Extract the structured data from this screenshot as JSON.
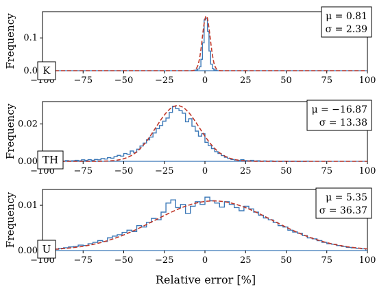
{
  "figure": {
    "xlabel": "Relative error [%]",
    "ylabel": "Frequency",
    "colors": {
      "histogram": "#3b78b7",
      "fit": "#c0392b",
      "axis": "#000000"
    }
  },
  "chart_data": [
    {
      "type": "bar",
      "panel": "K",
      "xlabel": "",
      "ylabel": "Frequency",
      "xlim": [
        -100,
        100
      ],
      "ylim": [
        0,
        0.18
      ],
      "xticks": [
        -100,
        -75,
        -50,
        -25,
        0,
        25,
        50,
        75,
        100
      ],
      "yticks": [
        0.0,
        0.1
      ],
      "ytick_labels": [
        "0.0",
        "0.1"
      ],
      "xtick_labels": [
        "−100",
        "−75",
        "−50",
        "−25",
        "0",
        "25",
        "50",
        "75",
        "100"
      ],
      "bin_width": 1,
      "histogram": [
        {
          "x": -6,
          "y": 0.001
        },
        {
          "x": -5,
          "y": 0.002
        },
        {
          "x": -4,
          "y": 0.005
        },
        {
          "x": -3,
          "y": 0.012
        },
        {
          "x": -2,
          "y": 0.035
        },
        {
          "x": -1,
          "y": 0.085
        },
        {
          "x": 0,
          "y": 0.155
        },
        {
          "x": 1,
          "y": 0.16
        },
        {
          "x": 2,
          "y": 0.12
        },
        {
          "x": 3,
          "y": 0.06
        },
        {
          "x": 4,
          "y": 0.02
        },
        {
          "x": 5,
          "y": 0.006
        },
        {
          "x": 6,
          "y": 0.002
        },
        {
          "x": 7,
          "y": 0.001
        }
      ],
      "fit": {
        "mu": 0.81,
        "sigma": 2.39
      },
      "stats": {
        "mu_label": "μ = 0.81",
        "sigma_label": "σ = 2.39"
      },
      "legend_position": "top-right",
      "grid": false
    },
    {
      "type": "bar",
      "panel": "TH",
      "xlabel": "",
      "ylabel": "Frequency",
      "xlim": [
        -100,
        100
      ],
      "ylim": [
        0,
        0.032
      ],
      "xticks": [
        -100,
        -75,
        -50,
        -25,
        0,
        25,
        50,
        75,
        100
      ],
      "yticks": [
        0.0,
        0.02
      ],
      "ytick_labels": [
        "0.00",
        "0.02"
      ],
      "xtick_labels": [
        "−100",
        "−75",
        "−50",
        "−25",
        "0",
        "25",
        "50",
        "75",
        "100"
      ],
      "bin_width": 2,
      "histogram": [
        {
          "x": -99,
          "y": 0.0001
        },
        {
          "x": -97,
          "y": 0.0003
        },
        {
          "x": -95,
          "y": 0.0002
        },
        {
          "x": -93,
          "y": 0.0001
        },
        {
          "x": -91,
          "y": 0.0003
        },
        {
          "x": -89,
          "y": 0.0002
        },
        {
          "x": -87,
          "y": 0.0001
        },
        {
          "x": -85,
          "y": 0.0004
        },
        {
          "x": -83,
          "y": 0.0002
        },
        {
          "x": -81,
          "y": 0.0003
        },
        {
          "x": -79,
          "y": 0.0005
        },
        {
          "x": -77,
          "y": 0.0003
        },
        {
          "x": -75,
          "y": 0.0008
        },
        {
          "x": -73,
          "y": 0.0005
        },
        {
          "x": -71,
          "y": 0.0009
        },
        {
          "x": -69,
          "y": 0.0006
        },
        {
          "x": -67,
          "y": 0.001
        },
        {
          "x": -65,
          "y": 0.0008
        },
        {
          "x": -63,
          "y": 0.0015
        },
        {
          "x": -61,
          "y": 0.0012
        },
        {
          "x": -59,
          "y": 0.002
        },
        {
          "x": -57,
          "y": 0.0017
        },
        {
          "x": -55,
          "y": 0.0025
        },
        {
          "x": -53,
          "y": 0.0032
        },
        {
          "x": -51,
          "y": 0.0028
        },
        {
          "x": -49,
          "y": 0.0042
        },
        {
          "x": -47,
          "y": 0.0038
        },
        {
          "x": -45,
          "y": 0.0055
        },
        {
          "x": -43,
          "y": 0.0048
        },
        {
          "x": -41,
          "y": 0.0065
        },
        {
          "x": -39,
          "y": 0.0082
        },
        {
          "x": -37,
          "y": 0.0098
        },
        {
          "x": -35,
          "y": 0.0115
        },
        {
          "x": -33,
          "y": 0.013
        },
        {
          "x": -31,
          "y": 0.0152
        },
        {
          "x": -29,
          "y": 0.0175
        },
        {
          "x": -27,
          "y": 0.0192
        },
        {
          "x": -25,
          "y": 0.0215
        },
        {
          "x": -23,
          "y": 0.0232
        },
        {
          "x": -21,
          "y": 0.0262
        },
        {
          "x": -19,
          "y": 0.0295
        },
        {
          "x": -17,
          "y": 0.0282
        },
        {
          "x": -15,
          "y": 0.0272
        },
        {
          "x": -13,
          "y": 0.0258
        },
        {
          "x": -11,
          "y": 0.0212
        },
        {
          "x": -9,
          "y": 0.0228
        },
        {
          "x": -7,
          "y": 0.0188
        },
        {
          "x": -5,
          "y": 0.0162
        },
        {
          "x": -3,
          "y": 0.0135
        },
        {
          "x": -1,
          "y": 0.0148
        },
        {
          "x": 1,
          "y": 0.0102
        },
        {
          "x": 3,
          "y": 0.0085
        },
        {
          "x": 5,
          "y": 0.0068
        },
        {
          "x": 7,
          "y": 0.0052
        },
        {
          "x": 9,
          "y": 0.0042
        },
        {
          "x": 11,
          "y": 0.0031
        },
        {
          "x": 13,
          "y": 0.0022
        },
        {
          "x": 15,
          "y": 0.0015
        },
        {
          "x": 17,
          "y": 0.001
        },
        {
          "x": 19,
          "y": 0.0007
        },
        {
          "x": 21,
          "y": 0.0005
        },
        {
          "x": 23,
          "y": 0.0009
        },
        {
          "x": 25,
          "y": 0.0004
        },
        {
          "x": 27,
          "y": 0.0003
        },
        {
          "x": 29,
          "y": 0.0005
        },
        {
          "x": 31,
          "y": 0.0002
        },
        {
          "x": 33,
          "y": 0.0003
        },
        {
          "x": 35,
          "y": 0.0001
        },
        {
          "x": 37,
          "y": 0.0002
        },
        {
          "x": 39,
          "y": 0.0001
        },
        {
          "x": 41,
          "y": 0.0002
        },
        {
          "x": 45,
          "y": 0.0001
        },
        {
          "x": 49,
          "y": 0.0001
        },
        {
          "x": 55,
          "y": 0.0001
        },
        {
          "x": 63,
          "y": 0.0001
        }
      ],
      "fit": {
        "mu": -16.87,
        "sigma": 13.38
      },
      "stats": {
        "mu_label": "μ = −16.87",
        "sigma_label": "σ = 13.38"
      },
      "legend_position": "top-right",
      "grid": false
    },
    {
      "type": "bar",
      "panel": "U",
      "xlabel": "Relative error [%]",
      "ylabel": "Frequency",
      "xlim": [
        -100,
        100
      ],
      "ylim": [
        0,
        0.0135
      ],
      "xticks": [
        -100,
        -75,
        -50,
        -25,
        0,
        25,
        50,
        75,
        100
      ],
      "yticks": [
        0.0,
        0.01
      ],
      "ytick_labels": [
        "0.00",
        "0.01"
      ],
      "xtick_labels": [
        "−100",
        "−75",
        "−50",
        "−25",
        "0",
        "25",
        "50",
        "75",
        "100"
      ],
      "bin_width": 3,
      "histogram": [
        {
          "x": -97.5,
          "y": 0.0003
        },
        {
          "x": -94.5,
          "y": 0.0001
        },
        {
          "x": -91.5,
          "y": 0.0003
        },
        {
          "x": -88.5,
          "y": 0.0005
        },
        {
          "x": -85.5,
          "y": 0.0006
        },
        {
          "x": -82.5,
          "y": 0.0008
        },
        {
          "x": -79.5,
          "y": 0.0009
        },
        {
          "x": -76.5,
          "y": 0.0012
        },
        {
          "x": -73.5,
          "y": 0.0011
        },
        {
          "x": -70.5,
          "y": 0.0015
        },
        {
          "x": -67.5,
          "y": 0.0018
        },
        {
          "x": -64.5,
          "y": 0.0022
        },
        {
          "x": -61.5,
          "y": 0.002
        },
        {
          "x": -58.5,
          "y": 0.0028
        },
        {
          "x": -55.5,
          "y": 0.0032
        },
        {
          "x": -52.5,
          "y": 0.0035
        },
        {
          "x": -49.5,
          "y": 0.004
        },
        {
          "x": -46.5,
          "y": 0.0045
        },
        {
          "x": -43.5,
          "y": 0.0042
        },
        {
          "x": -40.5,
          "y": 0.0055
        },
        {
          "x": -37.5,
          "y": 0.0052
        },
        {
          "x": -34.5,
          "y": 0.0062
        },
        {
          "x": -31.5,
          "y": 0.0071
        },
        {
          "x": -28.5,
          "y": 0.0068
        },
        {
          "x": -25.5,
          "y": 0.0085
        },
        {
          "x": -22.5,
          "y": 0.0105
        },
        {
          "x": -19.5,
          "y": 0.0112
        },
        {
          "x": -16.5,
          "y": 0.0095
        },
        {
          "x": -13.5,
          "y": 0.0102
        },
        {
          "x": -10.5,
          "y": 0.0082
        },
        {
          "x": -7.5,
          "y": 0.0098
        },
        {
          "x": -4.5,
          "y": 0.0108
        },
        {
          "x": -1.5,
          "y": 0.0102
        },
        {
          "x": 1.5,
          "y": 0.0118
        },
        {
          "x": 4.5,
          "y": 0.011
        },
        {
          "x": 7.5,
          "y": 0.0105
        },
        {
          "x": 10.5,
          "y": 0.0096
        },
        {
          "x": 13.5,
          "y": 0.0108
        },
        {
          "x": 16.5,
          "y": 0.0102
        },
        {
          "x": 19.5,
          "y": 0.0095
        },
        {
          "x": 22.5,
          "y": 0.0088
        },
        {
          "x": 25.5,
          "y": 0.0098
        },
        {
          "x": 28.5,
          "y": 0.0092
        },
        {
          "x": 31.5,
          "y": 0.0085
        },
        {
          "x": 34.5,
          "y": 0.0078
        },
        {
          "x": 37.5,
          "y": 0.0072
        },
        {
          "x": 40.5,
          "y": 0.0068
        },
        {
          "x": 43.5,
          "y": 0.0062
        },
        {
          "x": 46.5,
          "y": 0.0055
        },
        {
          "x": 49.5,
          "y": 0.0052
        },
        {
          "x": 52.5,
          "y": 0.0045
        },
        {
          "x": 55.5,
          "y": 0.0041
        },
        {
          "x": 58.5,
          "y": 0.0038
        },
        {
          "x": 61.5,
          "y": 0.0033
        },
        {
          "x": 64.5,
          "y": 0.0028
        },
        {
          "x": 67.5,
          "y": 0.0026
        },
        {
          "x": 70.5,
          "y": 0.0022
        },
        {
          "x": 73.5,
          "y": 0.0018
        },
        {
          "x": 76.5,
          "y": 0.0015
        },
        {
          "x": 79.5,
          "y": 0.0014
        },
        {
          "x": 82.5,
          "y": 0.0011
        },
        {
          "x": 85.5,
          "y": 0.0009
        },
        {
          "x": 88.5,
          "y": 0.0007
        },
        {
          "x": 91.5,
          "y": 0.0006
        },
        {
          "x": 94.5,
          "y": 0.0005
        },
        {
          "x": 97.5,
          "y": 0.0004
        }
      ],
      "fit": {
        "mu": 5.35,
        "sigma": 36.37
      },
      "stats": {
        "mu_label": "μ = 5.35",
        "sigma_label": "σ = 36.37"
      },
      "legend_position": "top-right",
      "grid": false
    }
  ]
}
